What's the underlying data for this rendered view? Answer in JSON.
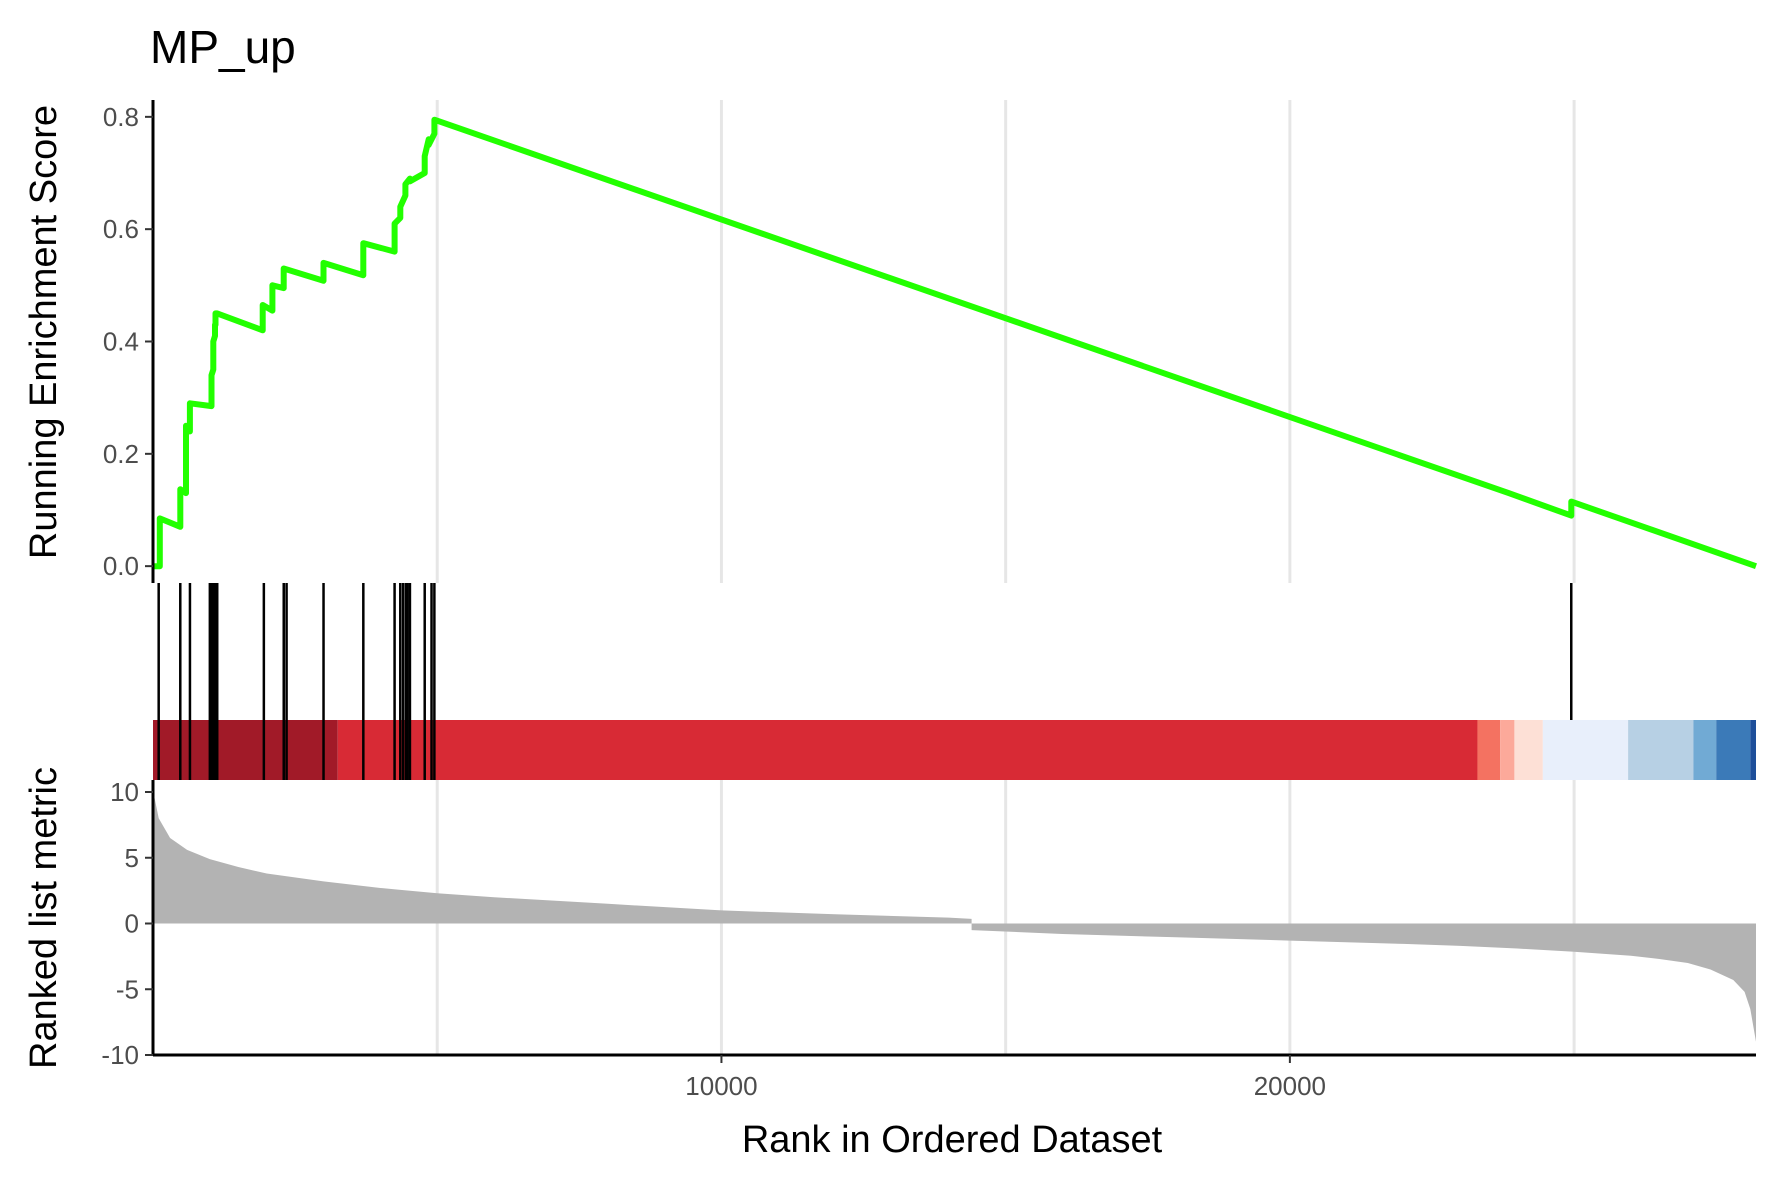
{
  "chart_data": {
    "type": "line",
    "title": "MP_up",
    "xlabel": "Rank in Ordered Dataset",
    "xlim": [
      0,
      28200
    ],
    "x_ticks": [
      10000,
      20000
    ],
    "x_tick_labels": [
      "10000",
      "20000"
    ],
    "panels": {
      "enrichment": {
        "ylabel": "Running Enrichment Score",
        "ylim": [
          -0.03,
          0.83
        ],
        "y_ticks": [
          0.0,
          0.2,
          0.4,
          0.6,
          0.8
        ],
        "y_tick_labels": [
          "0.0",
          "0.2",
          "0.4",
          "0.6",
          "0.8"
        ],
        "grid": "vertical",
        "line_color": "#22ff00",
        "series": [
          {
            "x": [
              0,
              120,
              120,
              480,
              480,
              580,
              580,
              650,
              650,
              1030,
              1030,
              1060,
              1060,
              1090,
              1090,
              1100,
              1100,
              1130,
              1130,
              1930,
              1930,
              2100,
              2100,
              2300,
              2300,
              3000,
              3000,
              3700,
              3700,
              4250,
              4250,
              4350,
              4350,
              4440,
              4440,
              4520,
              4520,
              4780,
              4780,
              4850,
              4850,
              4950,
              4950,
              23850,
              24950,
              24950,
              28200
            ],
            "y": [
              0.0,
              0.0,
              0.085,
              0.07,
              0.137,
              0.13,
              0.25,
              0.24,
              0.29,
              0.285,
              0.34,
              0.35,
              0.4,
              0.41,
              0.43,
              0.43,
              0.45,
              0.45,
              0.45,
              0.42,
              0.465,
              0.455,
              0.5,
              0.495,
              0.53,
              0.508,
              0.54,
              0.518,
              0.575,
              0.56,
              0.61,
              0.62,
              0.64,
              0.66,
              0.68,
              0.69,
              0.685,
              0.7,
              0.73,
              0.76,
              0.75,
              0.77,
              0.795,
              0.13,
              0.09,
              0.115,
              0.0
            ]
          }
        ]
      },
      "hits": {
        "positions": [
          100,
          480,
          650,
          1000,
          1030,
          1060,
          1080,
          1100,
          1130,
          1950,
          2300,
          2350,
          3000,
          3700,
          4250,
          4350,
          4400,
          4450,
          4480,
          4520,
          4780,
          4900,
          4950,
          24950
        ]
      },
      "color_bar": {
        "segments": [
          {
            "from": 0,
            "to": 3250,
            "color": "#a11a28"
          },
          {
            "from": 3250,
            "to": 23300,
            "color": "#d82a35"
          },
          {
            "from": 23300,
            "to": 23700,
            "color": "#f47261"
          },
          {
            "from": 23700,
            "to": 23950,
            "color": "#fca99a"
          },
          {
            "from": 23950,
            "to": 24450,
            "color": "#fde0d6"
          },
          {
            "from": 24450,
            "to": 25950,
            "color": "#e8effb"
          },
          {
            "from": 25950,
            "to": 27100,
            "color": "#b7d0e4"
          },
          {
            "from": 27100,
            "to": 27500,
            "color": "#71aad4"
          },
          {
            "from": 27500,
            "to": 28100,
            "color": "#3b7ab8"
          },
          {
            "from": 28100,
            "to": 28200,
            "color": "#1e4f9a"
          }
        ]
      },
      "ranked_metric": {
        "ylabel": "Ranked list metric",
        "ylim": [
          -10,
          10
        ],
        "y_ticks": [
          -10,
          -5,
          0,
          5,
          10
        ],
        "y_tick_labels": [
          "-10",
          "-5",
          "0",
          "5",
          "10"
        ],
        "fill_color": "#b3b3b3",
        "x": [
          0,
          30,
          100,
          300,
          600,
          1000,
          1500,
          2000,
          3000,
          4000,
          5000,
          6000,
          8000,
          10000,
          12000,
          14000,
          14400,
          14400,
          16000,
          18000,
          20000,
          22000,
          23000,
          24000,
          25000,
          26000,
          26500,
          27000,
          27400,
          27800,
          28000,
          28100,
          28200
        ],
        "y": [
          10,
          9.5,
          8.0,
          6.5,
          5.6,
          4.9,
          4.3,
          3.8,
          3.2,
          2.7,
          2.3,
          2.0,
          1.5,
          1.0,
          0.7,
          0.45,
          0.35,
          -0.5,
          -0.8,
          -1.05,
          -1.3,
          -1.55,
          -1.7,
          -1.9,
          -2.15,
          -2.45,
          -2.7,
          -3.0,
          -3.5,
          -4.3,
          -5.2,
          -6.5,
          -9
        ]
      }
    }
  }
}
